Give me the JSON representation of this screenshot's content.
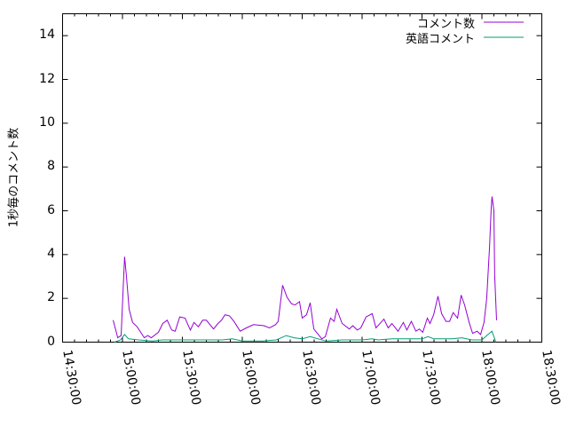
{
  "chart_data": {
    "type": "line",
    "title": "",
    "xlabel": "",
    "ylabel": "1秒毎のコメント数",
    "xlim": [
      "14:30:00",
      "18:30:00"
    ],
    "ylim": [
      0,
      15
    ],
    "x_ticks": [
      "14:30:00",
      "15:00:00",
      "15:30:00",
      "16:00:00",
      "16:30:00",
      "17:00:00",
      "17:30:00",
      "18:00:00",
      "18:30:00"
    ],
    "y_ticks": [
      "0",
      "2",
      "4",
      "6",
      "8",
      "10",
      "12",
      "14"
    ],
    "grid": false,
    "legend_position": "top-right",
    "series": [
      {
        "name": "コメント数",
        "color": "#9400d3",
        "points": [
          [
            "14:55:20",
            1.0
          ],
          [
            "14:57:40",
            0.2
          ],
          [
            "14:59:20",
            0.3
          ],
          [
            "15:00:10",
            2.1
          ],
          [
            "15:01:05",
            3.9
          ],
          [
            "15:02:00",
            3.0
          ],
          [
            "15:03:20",
            1.5
          ],
          [
            "15:05:05",
            0.9
          ],
          [
            "15:07:20",
            0.7
          ],
          [
            "15:10:55",
            0.2
          ],
          [
            "15:12:40",
            0.3
          ],
          [
            "15:14:25",
            0.2
          ],
          [
            "15:18:00",
            0.45
          ],
          [
            "15:20:10",
            0.85
          ],
          [
            "15:22:25",
            1.0
          ],
          [
            "15:24:40",
            0.55
          ],
          [
            "15:26:25",
            0.5
          ],
          [
            "15:28:40",
            1.15
          ],
          [
            "15:31:20",
            1.1
          ],
          [
            "15:34:00",
            0.55
          ],
          [
            "15:35:50",
            0.9
          ],
          [
            "15:38:00",
            0.7
          ],
          [
            "15:40:10",
            1.0
          ],
          [
            "15:42:00",
            1.0
          ],
          [
            "15:45:35",
            0.6
          ],
          [
            "15:47:50",
            0.85
          ],
          [
            "15:49:35",
            1.0
          ],
          [
            "15:51:20",
            1.25
          ],
          [
            "15:53:35",
            1.2
          ],
          [
            "15:55:50",
            0.95
          ],
          [
            "15:58:55",
            0.5
          ],
          [
            "16:02:00",
            0.65
          ],
          [
            "16:05:35",
            0.8
          ],
          [
            "16:10:55",
            0.75
          ],
          [
            "16:13:35",
            0.65
          ],
          [
            "16:16:40",
            0.8
          ],
          [
            "16:18:00",
            0.95
          ],
          [
            "16:20:10",
            2.6
          ],
          [
            "16:22:25",
            2.05
          ],
          [
            "16:24:40",
            1.75
          ],
          [
            "16:26:25",
            1.7
          ],
          [
            "16:28:40",
            1.85
          ],
          [
            "16:30:00",
            1.1
          ],
          [
            "16:32:10",
            1.25
          ],
          [
            "16:34:00",
            1.8
          ],
          [
            "16:35:50",
            0.6
          ],
          [
            "16:39:50",
            0.15
          ],
          [
            "16:41:35",
            0.25
          ],
          [
            "16:44:10",
            1.1
          ],
          [
            "16:46:00",
            0.95
          ],
          [
            "16:47:20",
            1.5
          ],
          [
            "16:50:00",
            0.85
          ],
          [
            "16:53:35",
            0.6
          ],
          [
            "16:55:20",
            0.75
          ],
          [
            "16:57:35",
            0.55
          ],
          [
            "16:59:20",
            0.65
          ],
          [
            "17:02:00",
            1.15
          ],
          [
            "17:05:05",
            1.3
          ],
          [
            "17:06:55",
            0.65
          ],
          [
            "17:10:55",
            1.05
          ],
          [
            "17:13:05",
            0.65
          ],
          [
            "17:14:55",
            0.85
          ],
          [
            "17:18:00",
            0.5
          ],
          [
            "17:20:40",
            0.9
          ],
          [
            "17:22:25",
            0.55
          ],
          [
            "17:24:40",
            0.95
          ],
          [
            "17:26:55",
            0.5
          ],
          [
            "17:28:40",
            0.6
          ],
          [
            "17:30:25",
            0.45
          ],
          [
            "17:32:40",
            1.1
          ],
          [
            "17:34:00",
            0.85
          ],
          [
            "17:35:50",
            1.25
          ],
          [
            "17:38:00",
            2.1
          ],
          [
            "17:39:50",
            1.3
          ],
          [
            "17:42:00",
            0.95
          ],
          [
            "17:43:50",
            0.95
          ],
          [
            "17:45:35",
            1.35
          ],
          [
            "17:47:50",
            1.1
          ],
          [
            "17:49:35",
            2.15
          ],
          [
            "17:51:20",
            1.7
          ],
          [
            "17:53:35",
            0.9
          ],
          [
            "17:55:20",
            0.4
          ],
          [
            "17:57:35",
            0.5
          ],
          [
            "17:59:20",
            0.35
          ],
          [
            "18:01:05",
            0.9
          ],
          [
            "18:02:25",
            2.0
          ],
          [
            "18:03:50",
            4.35
          ],
          [
            "18:04:40",
            6.15
          ],
          [
            "18:05:05",
            6.65
          ],
          [
            "18:06:00",
            6.0
          ],
          [
            "18:06:25",
            3.05
          ],
          [
            "18:07:20",
            1.0
          ]
        ]
      },
      {
        "name": "英語コメント",
        "color": "#009e73",
        "points": [
          [
            "14:56:00",
            0
          ],
          [
            "14:59:00",
            0.1
          ],
          [
            "15:01:00",
            0.35
          ],
          [
            "15:03:00",
            0.15
          ],
          [
            "15:08:00",
            0.1
          ],
          [
            "15:15:00",
            0.05
          ],
          [
            "15:20:00",
            0.1
          ],
          [
            "15:30:00",
            0.1
          ],
          [
            "15:40:00",
            0.1
          ],
          [
            "15:50:00",
            0.1
          ],
          [
            "15:55:00",
            0.15
          ],
          [
            "16:00:00",
            0.05
          ],
          [
            "16:10:00",
            0.05
          ],
          [
            "16:17:00",
            0.1
          ],
          [
            "16:22:00",
            0.3
          ],
          [
            "16:26:00",
            0.2
          ],
          [
            "16:30:00",
            0.15
          ],
          [
            "16:34:00",
            0.25
          ],
          [
            "16:38:00",
            0.15
          ],
          [
            "16:42:00",
            0.05
          ],
          [
            "16:50:00",
            0.1
          ],
          [
            "17:00:00",
            0.1
          ],
          [
            "17:05:00",
            0.15
          ],
          [
            "17:08:00",
            0.1
          ],
          [
            "17:15:00",
            0.15
          ],
          [
            "17:22:00",
            0.15
          ],
          [
            "17:30:00",
            0.15
          ],
          [
            "17:33:00",
            0.25
          ],
          [
            "17:36:00",
            0.15
          ],
          [
            "17:45:00",
            0.15
          ],
          [
            "17:50:00",
            0.2
          ],
          [
            "17:55:00",
            0.1
          ],
          [
            "18:00:00",
            0.1
          ],
          [
            "18:03:00",
            0.35
          ],
          [
            "18:05:00",
            0.5
          ],
          [
            "18:07:00",
            0
          ]
        ]
      }
    ]
  }
}
